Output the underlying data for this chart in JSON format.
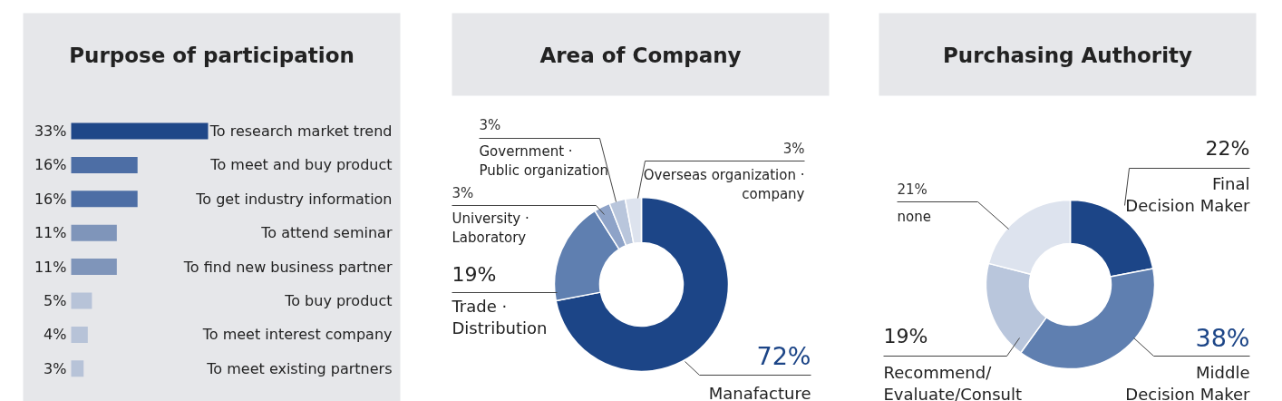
{
  "chart_data": [
    {
      "type": "bar",
      "orientation": "horizontal",
      "title": "Purpose of participation",
      "value_labels": [
        "33%",
        "16%",
        "16%",
        "11%",
        "11%",
        "5%",
        "4%",
        "3%"
      ],
      "categories": [
        "To research market trend",
        "To meet and buy product",
        "To get industry information",
        "To attend seminar",
        "To find new business partner",
        "To buy product",
        "To meet interest company",
        "To meet existing partners"
      ],
      "values": [
        33,
        16,
        16,
        11,
        11,
        5,
        4,
        3
      ],
      "colors": [
        "#1f4788",
        "#4d6ea5",
        "#4d6ea5",
        "#7f95ba",
        "#7f95ba",
        "#b7c3d8",
        "#b7c3d8",
        "#b7c3d8"
      ]
    },
    {
      "type": "donut",
      "title": "Area of Company",
      "value_labels": [
        "72%",
        "19%",
        "3%",
        "3%",
        "3%"
      ],
      "categories": [
        "Manafacture",
        "Trade ·\nDistribution",
        "University ·\nLaboratory",
        "Government ·\nPublic organization",
        "Overseas organization ·\ncompany"
      ],
      "values": [
        72,
        19,
        3,
        3,
        3
      ],
      "colors": [
        "#1c4587",
        "#5f7fb0",
        "#8ea3c8",
        "#b9c6dc",
        "#dde3ee"
      ]
    },
    {
      "type": "donut",
      "title": "Purchasing Authority",
      "value_labels": [
        "22%",
        "38%",
        "19%",
        "21%"
      ],
      "categories": [
        "Final\nDecision Maker",
        "Middle\nDecision Maker",
        "Recommend/\nEvaluate/Consult",
        "none"
      ],
      "values": [
        22,
        38,
        19,
        21
      ],
      "colors": [
        "#1c4587",
        "#5f7fb0",
        "#b9c6dc",
        "#dde3ee"
      ]
    }
  ]
}
